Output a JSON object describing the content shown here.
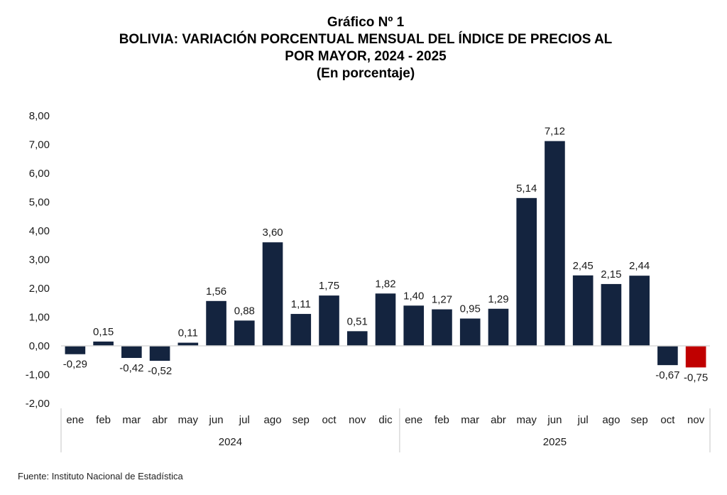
{
  "chart_data": {
    "type": "bar",
    "title": "Gráfico Nº 1",
    "subtitle_lines": [
      "BOLIVIA: VARIACIÓN PORCENTUAL MENSUAL DEL ÍNDICE DE PRECIOS AL",
      "POR MAYOR, 2024 - 2025",
      "(En porcentaje)"
    ],
    "xlabel": "",
    "ylabel": "",
    "ylim": [
      -2,
      8
    ],
    "yticks": [
      8,
      7,
      6,
      5,
      4,
      3,
      2,
      1,
      0,
      -1,
      -2
    ],
    "ytick_labels": [
      "8,00",
      "7,00",
      "6,00",
      "5,00",
      "4,00",
      "3,00",
      "2,00",
      "1,00",
      "0,00",
      "-1,00",
      "-2,00"
    ],
    "grid": false,
    "legend": "none",
    "groups": [
      {
        "label": "2024",
        "categories": [
          "ene",
          "feb",
          "mar",
          "abr",
          "may",
          "jun",
          "jul",
          "ago",
          "sep",
          "oct",
          "nov",
          "dic"
        ]
      },
      {
        "label": "2025",
        "categories": [
          "ene",
          "feb",
          "mar",
          "abr",
          "may",
          "jun",
          "jul",
          "ago",
          "sep",
          "oct",
          "nov"
        ]
      }
    ],
    "categories": [
      "ene 2024",
      "feb 2024",
      "mar 2024",
      "abr 2024",
      "may 2024",
      "jun 2024",
      "jul 2024",
      "ago 2024",
      "sep 2024",
      "oct 2024",
      "nov 2024",
      "dic 2024",
      "ene 2025",
      "feb 2025",
      "mar 2025",
      "abr 2025",
      "may 2025",
      "jun 2025",
      "jul 2025",
      "ago 2025",
      "sep 2025",
      "oct 2025",
      "nov 2025"
    ],
    "values": [
      -0.29,
      0.15,
      -0.42,
      -0.52,
      0.11,
      1.56,
      0.88,
      3.6,
      1.11,
      1.75,
      0.51,
      1.82,
      1.4,
      1.27,
      0.95,
      1.29,
      5.14,
      7.12,
      2.45,
      2.15,
      2.44,
      -0.67,
      -0.75
    ],
    "value_labels": [
      "-0,29",
      "0,15",
      "-0,42",
      "-0,52",
      "0,11",
      "1,56",
      "0,88",
      "3,60",
      "1,11",
      "1,75",
      "0,51",
      "1,82",
      "1,40",
      "1,27",
      "0,95",
      "1,29",
      "5,14",
      "7,12",
      "2,45",
      "2,15",
      "2,44",
      "-0,67",
      "-0,75"
    ],
    "highlighted_index": 22,
    "colors": {
      "bar": "#14243f",
      "highlight": "#c00000",
      "axis": "#d9d9d9"
    }
  },
  "source": "Fuente: Instituto Nacional de Estadística"
}
